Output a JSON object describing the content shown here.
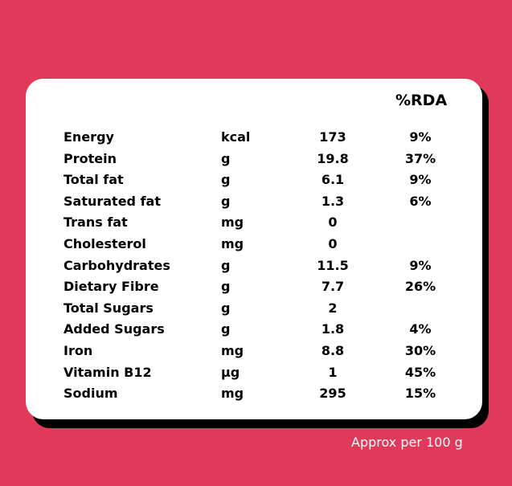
{
  "header": {
    "rda_label": "%RDA"
  },
  "nutrients": [
    {
      "name": "Energy",
      "unit": "kcal",
      "value": "173",
      "rda": "9%"
    },
    {
      "name": "Protein",
      "unit": "g",
      "value": "19.8",
      "rda": "37%"
    },
    {
      "name": "Total fat",
      "unit": "g",
      "value": "6.1",
      "rda": "9%"
    },
    {
      "name": "Saturated fat",
      "unit": "g",
      "value": "1.3",
      "rda": "6%"
    },
    {
      "name": "Trans fat",
      "unit": "mg",
      "value": "0",
      "rda": ""
    },
    {
      "name": "Cholesterol",
      "unit": "mg",
      "value": "0",
      "rda": ""
    },
    {
      "name": "Carbohydrates",
      "unit": "g",
      "value": "11.5",
      "rda": "9%"
    },
    {
      "name": "Dietary Fibre",
      "unit": "g",
      "value": "7.7",
      "rda": "26%"
    },
    {
      "name": "Total Sugars",
      "unit": "g",
      "value": "2",
      "rda": ""
    },
    {
      "name": "Added Sugars",
      "unit": "g",
      "value": "1.8",
      "rda": "4%"
    },
    {
      "name": "Iron",
      "unit": "mg",
      "value": "8.8",
      "rda": "30%"
    },
    {
      "name": "Vitamin B12",
      "unit": "µg",
      "value": "1",
      "rda": "45%"
    },
    {
      "name": "Sodium",
      "unit": "mg",
      "value": "295",
      "rda": "15%"
    }
  ],
  "footer": {
    "note": "Approx per 100 g"
  },
  "colors": {
    "background": "#e0395a",
    "card": "#ffffff",
    "shadow": "#000000"
  }
}
